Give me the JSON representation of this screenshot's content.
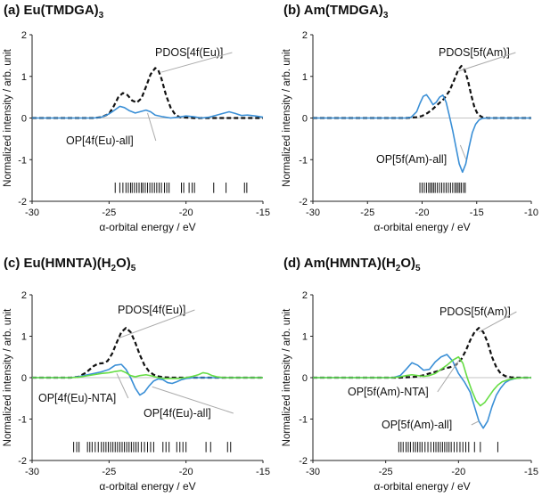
{
  "chart_data": [
    {
      "id": "a",
      "type": "line",
      "title": "(a) Eu(TMDGA)",
      "title_sub": "3",
      "xlabel": "α-orbital energy / eV",
      "ylabel": "Normalized intensity / arb. unit",
      "xlim": [
        -30,
        -15
      ],
      "ylim": [
        -2,
        2
      ],
      "xticks": [
        "-30",
        "-25",
        "-20",
        "-15"
      ],
      "yticks": [
        "2",
        "1",
        "0",
        "-1",
        "-2"
      ],
      "series": [
        {
          "name": "PDOS[4f(Eu)]",
          "color": "#111111",
          "dash": true,
          "x": [
            -30,
            -26,
            -25.5,
            -25,
            -24.7,
            -24.4,
            -24.1,
            -23.8,
            -23.5,
            -23.2,
            -22.9,
            -22.6,
            -22.3,
            -22,
            -21.8,
            -21.6,
            -21.3,
            -21,
            -20.7,
            -20.4,
            -20,
            -19.5,
            -18,
            -15
          ],
          "y": [
            0,
            0,
            0.02,
            0.1,
            0.28,
            0.5,
            0.6,
            0.55,
            0.42,
            0.37,
            0.47,
            0.75,
            1.05,
            1.2,
            1.15,
            0.95,
            0.55,
            0.25,
            0.08,
            0.02,
            0.01,
            0,
            0,
            0
          ]
        },
        {
          "name": "OP[4f(Eu)-all]",
          "color": "#3a8fd6",
          "dash": false,
          "x": [
            -30,
            -26,
            -25.5,
            -25,
            -24.6,
            -24.3,
            -24,
            -23.7,
            -23.3,
            -23,
            -22.6,
            -22.3,
            -22,
            -21.5,
            -21,
            -20.5,
            -20,
            -19.5,
            -19,
            -18.5,
            -18,
            -17.5,
            -17.2,
            -16.8,
            -16.4,
            -16,
            -15.5,
            -15
          ],
          "y": [
            0,
            0,
            0.02,
            0.1,
            0.2,
            0.28,
            0.25,
            0.18,
            0.12,
            0.15,
            0.19,
            0.15,
            0.07,
            0.03,
            0.0,
            0.02,
            0.05,
            0.03,
            0.0,
            0.02,
            0.07,
            0.12,
            0.15,
            0.11,
            0.06,
            0.07,
            0.05,
            0.02
          ]
        }
      ],
      "annotations": [
        {
          "label": "PDOS[4f(Eu)]",
          "target": [
            -21.6,
            1.1
          ]
        },
        {
          "label": "OP[4f(Eu)-all]",
          "target": [
            -22.5,
            0.12
          ]
        }
      ],
      "levels": [
        -24.6,
        -24.3,
        -24.1,
        -23.9,
        -23.75,
        -23.6,
        -23.5,
        -23.35,
        -23.2,
        -23.05,
        -22.9,
        -22.8,
        -22.65,
        -22.5,
        -22.35,
        -22.2,
        -22.05,
        -21.9,
        -21.75,
        -21.6,
        -21.4,
        -21.25,
        -21.1,
        -20.3,
        -20.15,
        -19.8,
        -19.6,
        -19.45,
        -18.2,
        -17.4,
        -16.2,
        -16.05
      ]
    },
    {
      "id": "b",
      "type": "line",
      "title": "(b) Am(TMDGA)",
      "title_sub": "3",
      "xlabel": "α-orbital energy / eV",
      "ylabel": "Normalized intensity / arb. unit",
      "xlim": [
        -30,
        -10
      ],
      "ylim": [
        -2,
        2
      ],
      "xticks": [
        "-30",
        "-25",
        "-20",
        "-15",
        "-10"
      ],
      "yticks": [
        "2",
        "1",
        "0",
        "-1",
        "-2"
      ],
      "series": [
        {
          "name": "PDOS[5f(Am)]",
          "color": "#111111",
          "dash": true,
          "x": [
            -30,
            -21.5,
            -21,
            -20.5,
            -20,
            -19.5,
            -19,
            -18.5,
            -18,
            -17.5,
            -17,
            -16.7,
            -16.4,
            -16.1,
            -15.8,
            -15.5,
            -15.2,
            -14.9,
            -14.5,
            -14,
            -10
          ],
          "y": [
            0,
            0,
            0.01,
            0.02,
            0.05,
            0.12,
            0.22,
            0.34,
            0.46,
            0.65,
            0.95,
            1.15,
            1.25,
            1.15,
            0.9,
            0.55,
            0.25,
            0.09,
            0.02,
            0,
            0
          ]
        },
        {
          "name": "OP[5f(Am)-all]",
          "color": "#3a8fd6",
          "dash": false,
          "x": [
            -30,
            -21.5,
            -21,
            -20.5,
            -20.2,
            -19.9,
            -19.6,
            -19.3,
            -19,
            -18.7,
            -18.4,
            -18.1,
            -17.8,
            -17.5,
            -17.2,
            -16.9,
            -16.6,
            -16.3,
            -16,
            -15.7,
            -15.4,
            -15.1,
            -14.8,
            -14.5,
            -14,
            -10
          ],
          "y": [
            0,
            0,
            0.02,
            0.15,
            0.35,
            0.52,
            0.56,
            0.45,
            0.32,
            0.38,
            0.5,
            0.55,
            0.38,
            0.05,
            -0.3,
            -0.7,
            -1.1,
            -1.3,
            -1.1,
            -0.7,
            -0.35,
            -0.15,
            -0.05,
            -0.01,
            0,
            0
          ]
        }
      ],
      "annotations": [
        {
          "label": "PDOS[5f(Am)]",
          "target": [
            -16.7,
            1.12
          ]
        },
        {
          "label": "OP[5f(Am)-all]",
          "target": [
            -16.5,
            -0.65
          ]
        }
      ],
      "levels": [
        -20.2,
        -20.0,
        -19.8,
        -19.6,
        -19.4,
        -19.25,
        -19.1,
        -18.95,
        -18.8,
        -18.6,
        -18.4,
        -18.2,
        -18.0,
        -17.8,
        -17.6,
        -17.4,
        -17.2,
        -17.0,
        -16.85,
        -16.7,
        -16.55,
        -16.4,
        -16.2,
        -16.05
      ]
    },
    {
      "id": "c",
      "type": "line",
      "title": "(c) Eu(HMNTA)(H",
      "title_sub": "2",
      "title_tail": "O)",
      "title_sub2": "5",
      "xlabel": "α-orbital energy / eV",
      "ylabel": "Normalized intensity / arb. unit",
      "xlim": [
        -30,
        -15
      ],
      "ylim": [
        -2,
        2
      ],
      "xticks": [
        "-30",
        "-25",
        "-20",
        "-15"
      ],
      "yticks": [
        "2",
        "1",
        "0",
        "-1",
        "-2"
      ],
      "series": [
        {
          "name": "PDOS[4f(Eu)]",
          "color": "#111111",
          "dash": true,
          "x": [
            -30,
            -27.5,
            -27,
            -26.5,
            -26,
            -25.7,
            -25.4,
            -25.1,
            -24.8,
            -24.5,
            -24.2,
            -23.9,
            -23.6,
            -23.3,
            -23,
            -22.7,
            -22.4,
            -22.1,
            -21.8,
            -21.4,
            -21,
            -20.5,
            -20,
            -15
          ],
          "y": [
            0,
            0,
            0.02,
            0.12,
            0.28,
            0.34,
            0.35,
            0.4,
            0.58,
            0.85,
            1.1,
            1.2,
            1.1,
            0.85,
            0.55,
            0.3,
            0.15,
            0.07,
            0.03,
            0.01,
            0,
            0,
            0,
            0
          ]
        },
        {
          "name": "OP[4f(Eu)-all]",
          "color": "#3a8fd6",
          "dash": false,
          "x": [
            -30,
            -27.5,
            -27,
            -26.5,
            -26,
            -25.5,
            -25,
            -24.6,
            -24.2,
            -23.9,
            -23.6,
            -23.3,
            -23,
            -22.7,
            -22.4,
            -22.1,
            -21.8,
            -21.5,
            -21.2,
            -20.9,
            -20.6,
            -20.3,
            -20,
            -19.5,
            -19,
            -15
          ],
          "y": [
            0,
            0,
            0.02,
            0.06,
            0.1,
            0.14,
            0.2,
            0.3,
            0.32,
            0.2,
            0.0,
            -0.25,
            -0.42,
            -0.35,
            -0.2,
            -0.08,
            -0.03,
            -0.05,
            -0.12,
            -0.14,
            -0.1,
            -0.05,
            -0.02,
            0,
            0,
            0
          ]
        },
        {
          "name": "OP[4f(Eu)-NTA]",
          "color": "#66dd44",
          "dash": false,
          "x": [
            -30,
            -27.5,
            -27,
            -26.5,
            -26,
            -25.5,
            -25,
            -24.6,
            -24.2,
            -23.9,
            -23.6,
            -23.3,
            -23,
            -22.6,
            -22.2,
            -21.8,
            -21.4,
            -21,
            -20.5,
            -20,
            -19.6,
            -19.2,
            -18.9,
            -18.6,
            -18.3,
            -18,
            -17.5,
            -15
          ],
          "y": [
            0,
            0,
            0.01,
            0.04,
            0.07,
            0.1,
            0.12,
            0.15,
            0.17,
            0.12,
            0.05,
            0.02,
            0.05,
            0.07,
            0.04,
            0.0,
            -0.02,
            -0.02,
            -0.02,
            0.0,
            0.03,
            0.07,
            0.12,
            0.1,
            0.05,
            0.02,
            0.0,
            0
          ]
        }
      ],
      "annotations": [
        {
          "label": "PDOS[4f(Eu)]",
          "target": [
            -24.4,
            0.95
          ]
        },
        {
          "label": "OP[4f(Eu)-NTA]",
          "target": [
            -24.5,
            0.1
          ]
        },
        {
          "label": "OP[4f(Eu)-all]",
          "target": [
            -22.2,
            -0.22
          ]
        }
      ],
      "levels": [
        -27.3,
        -27.1,
        -26.95,
        -26.4,
        -26.25,
        -26.1,
        -25.9,
        -25.7,
        -25.5,
        -25.35,
        -25.2,
        -25.05,
        -24.9,
        -24.75,
        -24.6,
        -24.45,
        -24.3,
        -24.15,
        -24.0,
        -23.85,
        -23.7,
        -23.55,
        -23.4,
        -23.25,
        -23.1,
        -22.9,
        -22.7,
        -22.5,
        -22.3,
        -22.1,
        -21.5,
        -21.3,
        -21.1,
        -20.6,
        -20.4,
        -20.2,
        -20.0,
        -18.7,
        -18.4,
        -17.3,
        -17.1
      ]
    },
    {
      "id": "d",
      "type": "line",
      "title": "(d) Am(HMNTA)(H",
      "title_sub": "2",
      "title_tail": "O)",
      "title_sub2": "5",
      "xlabel": "α-orbital energy / eV",
      "ylabel": "Normalized intensity / arb. unit",
      "xlim": [
        -30,
        -15
      ],
      "ylim": [
        -2,
        2
      ],
      "xticks": [
        "-30",
        "-25",
        "-20",
        "-15"
      ],
      "yticks": [
        "2",
        "1",
        "0",
        "-1",
        "-2"
      ],
      "series": [
        {
          "name": "PDOS[5f(Am)]",
          "color": "#111111",
          "dash": true,
          "x": [
            -30,
            -24,
            -23,
            -22.5,
            -22,
            -21.5,
            -21,
            -20.6,
            -20.2,
            -19.8,
            -19.5,
            -19.2,
            -18.9,
            -18.6,
            -18.3,
            -18,
            -17.7,
            -17.4,
            -17.1,
            -16.8,
            -16.4,
            -16,
            -15
          ],
          "y": [
            0,
            0,
            0.02,
            0.05,
            0.1,
            0.15,
            0.22,
            0.25,
            0.3,
            0.45,
            0.65,
            0.9,
            1.1,
            1.2,
            1.1,
            0.85,
            0.5,
            0.25,
            0.1,
            0.04,
            0.01,
            0,
            0
          ]
        },
        {
          "name": "OP[5f(Am)-all]",
          "color": "#3a8fd6",
          "dash": false,
          "x": [
            -30,
            -24.5,
            -24,
            -23.6,
            -23.2,
            -22.8,
            -22.4,
            -22,
            -21.6,
            -21.2,
            -20.8,
            -20.4,
            -20,
            -19.6,
            -19.2,
            -18.9,
            -18.6,
            -18.3,
            -18,
            -17.7,
            -17.4,
            -17.1,
            -16.8,
            -16.5,
            -16.2,
            -15.9,
            -15.5,
            -15
          ],
          "y": [
            0,
            0,
            0.05,
            0.2,
            0.36,
            0.3,
            0.18,
            0.2,
            0.38,
            0.5,
            0.56,
            0.4,
            0.1,
            -0.1,
            -0.35,
            -0.7,
            -1.05,
            -1.22,
            -1.05,
            -0.7,
            -0.42,
            -0.25,
            -0.12,
            -0.06,
            -0.03,
            -0.01,
            0,
            0
          ]
        },
        {
          "name": "OP[5f(Am)-NTA]",
          "color": "#66dd44",
          "dash": false,
          "x": [
            -30,
            -24.5,
            -24,
            -23.6,
            -23.2,
            -22.8,
            -22.4,
            -22,
            -21.6,
            -21.2,
            -20.8,
            -20.4,
            -20,
            -19.7,
            -19.4,
            -19.1,
            -18.8,
            -18.5,
            -18.2,
            -17.9,
            -17.6,
            -17.3,
            -17,
            -16.6,
            -16.2,
            -15.8,
            -15.5,
            -15
          ],
          "y": [
            0,
            0,
            0.02,
            0.05,
            0.07,
            0.05,
            0.03,
            0.05,
            0.1,
            0.2,
            0.3,
            0.42,
            0.5,
            0.35,
            0.0,
            -0.3,
            -0.55,
            -0.68,
            -0.6,
            -0.45,
            -0.3,
            -0.18,
            -0.1,
            -0.05,
            -0.02,
            -0.01,
            0,
            0
          ]
        }
      ],
      "annotations": [
        {
          "label": "PDOS[5f(Am)]",
          "target": [
            -18.6,
            1.1
          ]
        },
        {
          "label": "OP[5f(Am)-NTA]",
          "target": [
            -19.9,
            0.45
          ]
        },
        {
          "label": "OP[5f(Am)-all]",
          "target": [
            -18.6,
            -1.05
          ]
        }
      ],
      "levels": [
        -24.1,
        -23.95,
        -23.8,
        -23.6,
        -23.45,
        -23.3,
        -23.1,
        -22.95,
        -22.8,
        -22.65,
        -22.5,
        -22.3,
        -22.1,
        -21.9,
        -21.7,
        -21.55,
        -21.4,
        -21.25,
        -21.1,
        -20.95,
        -20.8,
        -20.65,
        -20.5,
        -20.3,
        -20.1,
        -19.9,
        -19.7,
        -19.5,
        -19.3,
        -18.9,
        -18.5,
        -17.3
      ]
    }
  ]
}
